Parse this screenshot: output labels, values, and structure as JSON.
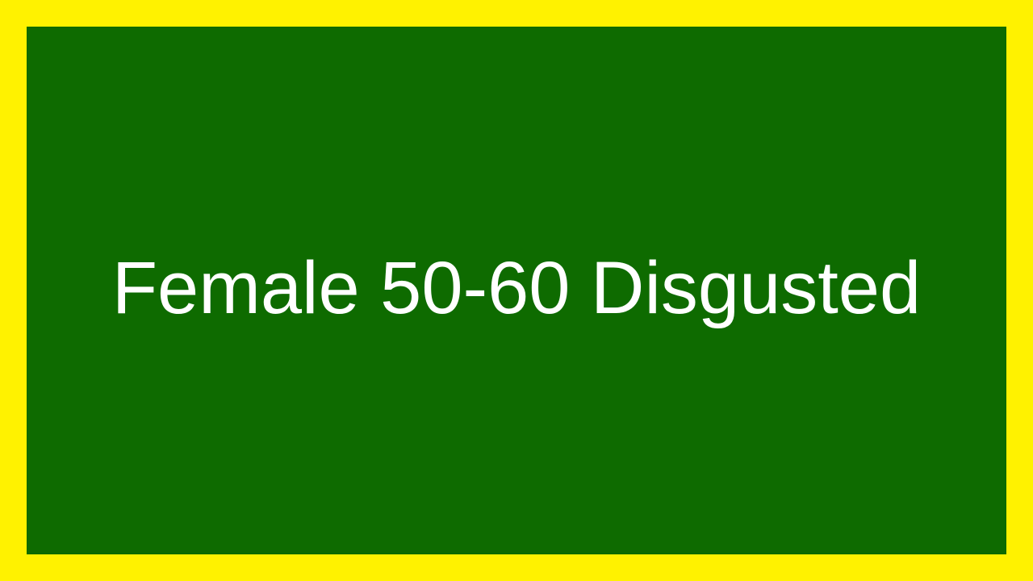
{
  "label": "Female 50-60 Disgusted",
  "colors": {
    "border": "#fff200",
    "panel": "#0e6b00",
    "text": "#ffffff"
  }
}
